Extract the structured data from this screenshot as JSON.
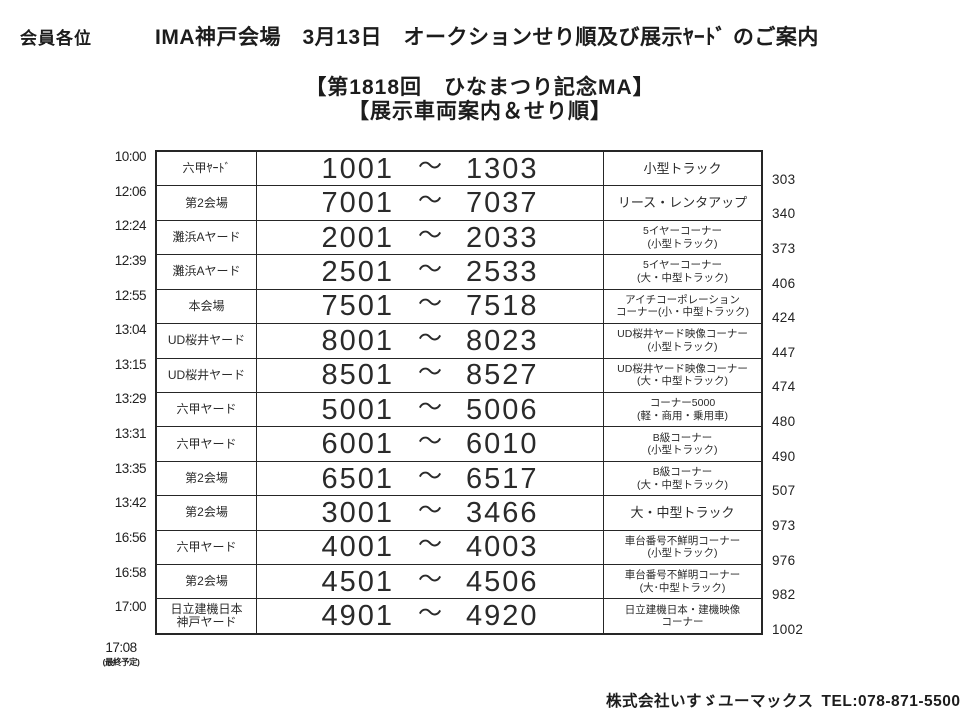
{
  "header": {
    "salutation": "会員各位",
    "title": "IMA神戸会場　3月13日　オークションせり順及び展示ﾔｰﾄﾞ のご案内",
    "subtitle1": "【第1818回　ひなまつり記念MA】",
    "subtitle2": "【展示車両案内＆せり順】"
  },
  "schedule": {
    "rows": [
      {
        "time": "10:00",
        "venue": "六甲ﾔｰﾄﾞ",
        "lot_start": "1001",
        "tilde": "～",
        "lot_end": "1303",
        "category": "小型トラック",
        "count": "303"
      },
      {
        "time": "12:06",
        "venue": "第2会場",
        "lot_start": "7001",
        "tilde": "～",
        "lot_end": "7037",
        "category": "リース・レンタアップ",
        "count": "340"
      },
      {
        "time": "12:24",
        "venue": "灘浜Aヤード",
        "lot_start": "2001",
        "tilde": "～",
        "lot_end": "2033",
        "category": "5イヤーコーナー\n(小型トラック)",
        "count": "373"
      },
      {
        "time": "12:39",
        "venue": "灘浜Aヤード",
        "lot_start": "2501",
        "tilde": "～",
        "lot_end": "2533",
        "category": "5イヤーコーナー\n(大・中型トラック)",
        "count": "406"
      },
      {
        "time": "12:55",
        "venue": "本会場",
        "lot_start": "7501",
        "tilde": "～",
        "lot_end": "7518",
        "category": "アイチコーポレーション\nコーナー(小・中型トラック)",
        "count": "424"
      },
      {
        "time": "13:04",
        "venue": "UD桜井ヤード",
        "lot_start": "8001",
        "tilde": "～",
        "lot_end": "8023",
        "category": "UD桜井ヤード映像コーナー\n(小型トラック)",
        "count": "447"
      },
      {
        "time": "13:15",
        "venue": "UD桜井ヤード",
        "lot_start": "8501",
        "tilde": "～",
        "lot_end": "8527",
        "category": "UD桜井ヤード映像コーナー\n(大・中型トラック)",
        "count": "474"
      },
      {
        "time": "13:29",
        "venue": "六甲ヤード",
        "lot_start": "5001",
        "tilde": "～",
        "lot_end": "5006",
        "category": "コーナー5000\n(軽・商用・乗用車)",
        "count": "480"
      },
      {
        "time": "13:31",
        "venue": "六甲ヤード",
        "lot_start": "6001",
        "tilde": "～",
        "lot_end": "6010",
        "category": "B級コーナー\n(小型トラック)",
        "count": "490"
      },
      {
        "time": "13:35",
        "venue": "第2会場",
        "lot_start": "6501",
        "tilde": "～",
        "lot_end": "6517",
        "category": "B級コーナー\n(大・中型トラック)",
        "count": "507"
      },
      {
        "time": "13:42",
        "venue": "第2会場",
        "lot_start": "3001",
        "tilde": "～",
        "lot_end": "3466",
        "category": "大・中型トラック",
        "count": "973"
      },
      {
        "time": "16:56",
        "venue": "六甲ヤード",
        "lot_start": "4001",
        "tilde": "～",
        "lot_end": "4003",
        "category": "車台番号不鮮明コーナー\n(小型トラック)",
        "count": "976"
      },
      {
        "time": "16:58",
        "venue": "第2会場",
        "lot_start": "4501",
        "tilde": "～",
        "lot_end": "4506",
        "category": "車台番号不鮮明コーナー\n(大･中型トラック)",
        "count": "982"
      },
      {
        "time": "17:00",
        "venue": "日立建機日本\n神戸ヤード",
        "lot_start": "4901",
        "tilde": "～",
        "lot_end": "4920",
        "category": "日立建機日本・建機映像\nコーナー",
        "count": "1002"
      }
    ],
    "final_time": "17:08",
    "final_time_note": "(最終予定)"
  },
  "footer": {
    "company": "株式会社いすゞユーマックス",
    "tel": "TEL:078-871-5500"
  }
}
